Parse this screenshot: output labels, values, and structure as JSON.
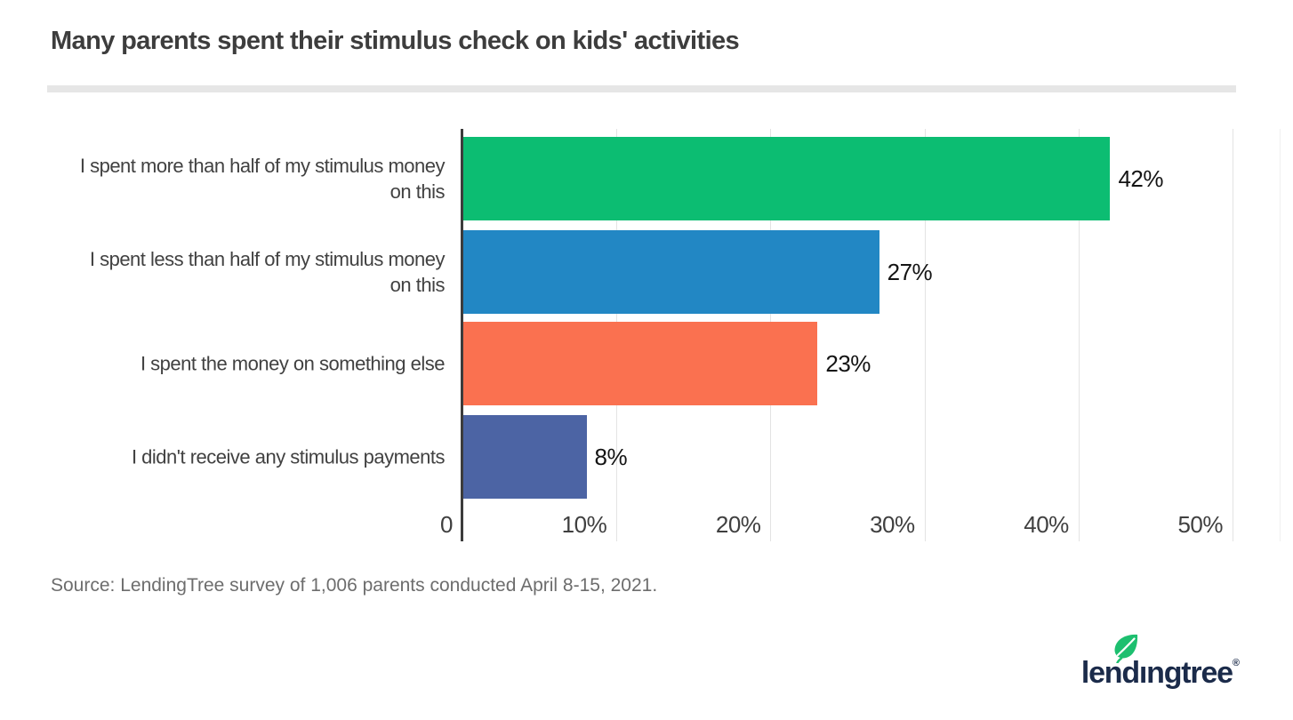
{
  "title": "Many parents spent their stimulus check on kids' activities",
  "source": "Source: LendingTree survey of 1,006 parents conducted April 8-15, 2021.",
  "logo": {
    "text_before_i": "lend",
    "i_char": "ı",
    "text_after_i": "ngtree",
    "registered": "®",
    "navy_color": "#1b2b4a",
    "leaf_green_color": "#1dbf6f"
  },
  "chart_data": {
    "type": "bar",
    "orientation": "horizontal",
    "title": "Many parents spent their stimulus check on kids' activities",
    "categories": [
      "I spent more than half of my stimulus money on this",
      "I spent less than half of my stimulus money on this",
      "I spent the money on something else",
      "I didn't receive any stimulus payments"
    ],
    "category_lines": [
      [
        "I spent more than half of my stimulus money",
        "on this"
      ],
      [
        "I spent less than half of my stimulus money",
        "on this"
      ],
      [
        "I spent the money on something else"
      ],
      [
        "I didn't receive any stimulus payments"
      ]
    ],
    "values": [
      42,
      27,
      23,
      8
    ],
    "value_labels": [
      "42%",
      "27%",
      "23%",
      "8%"
    ],
    "bar_colors": [
      "#0cbd72",
      "#2287c4",
      "#fa7150",
      "#4c64a4"
    ],
    "x_ticks": [
      {
        "value": 0,
        "label": "0"
      },
      {
        "value": 10,
        "label": "10%"
      },
      {
        "value": 20,
        "label": "20%"
      },
      {
        "value": 30,
        "label": "30%"
      },
      {
        "value": 40,
        "label": "40%"
      },
      {
        "value": 50,
        "label": "50%"
      }
    ],
    "xlabel": "",
    "ylabel": "",
    "xlim": [
      0,
      53
    ],
    "grid": true,
    "legend": "none",
    "axis_color": "#3c3c3c",
    "gridline_color": "#e3e3e3"
  }
}
